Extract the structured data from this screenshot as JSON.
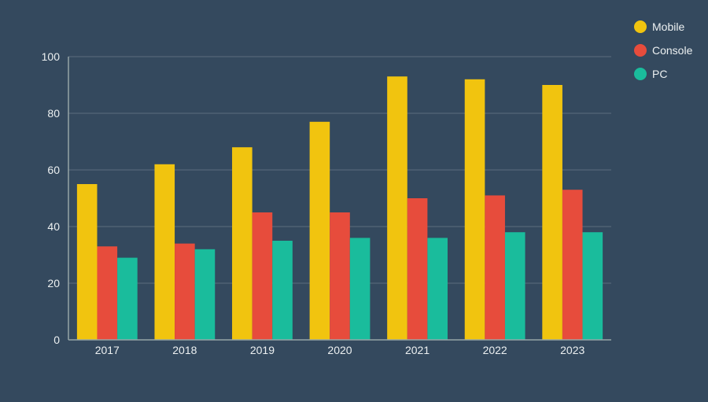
{
  "chart_data": {
    "type": "bar",
    "title": "",
    "xlabel": "",
    "ylabel": "",
    "categories": [
      "2017",
      "2018",
      "2019",
      "2020",
      "2021",
      "2022",
      "2023"
    ],
    "series": [
      {
        "name": "Mobile",
        "color": "#f1c40f",
        "values": [
          55,
          62,
          68,
          77,
          93,
          92,
          90
        ]
      },
      {
        "name": "Console",
        "color": "#e74c3c",
        "values": [
          33,
          34,
          45,
          45,
          50,
          51,
          53
        ]
      },
      {
        "name": "PC",
        "color": "#1abc9c",
        "values": [
          29,
          32,
          35,
          36,
          36,
          38,
          38
        ]
      }
    ],
    "ylim": [
      0,
      100
    ],
    "yticks": [
      "0",
      "20",
      "40",
      "60",
      "80",
      "100"
    ],
    "grid": true,
    "legend_position": "top-right"
  },
  "colors": {
    "background": "#34495e",
    "grid": "#5d6d7e",
    "axis": "#95a5a6",
    "text": "#ecf0f1"
  }
}
